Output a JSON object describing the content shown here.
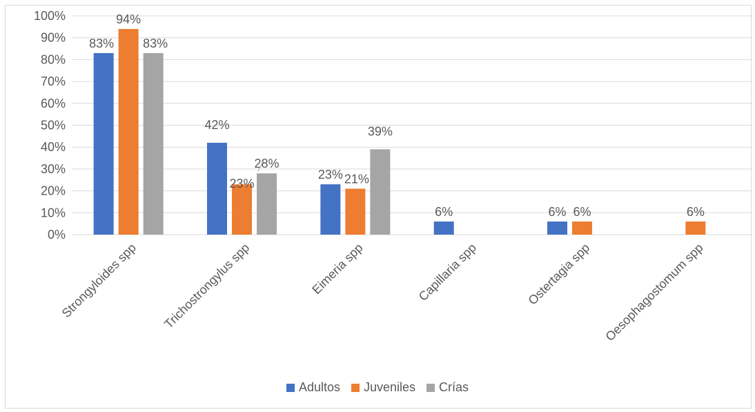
{
  "chart_data": {
    "type": "bar",
    "categories": [
      "Strongyloides spp",
      "Trichostrongylus spp",
      "Eimeria spp",
      "Capillaria spp",
      "Ostertagia spp",
      "Oesophagostomum spp"
    ],
    "series": [
      {
        "name": "Adultos",
        "color": "#4472c4",
        "values": [
          83,
          42,
          23,
          6,
          6,
          0
        ],
        "labels": [
          "83%",
          "42%",
          "23%",
          "6%",
          "6%",
          ""
        ]
      },
      {
        "name": "Juveniles",
        "color": "#ed7d31",
        "values": [
          94,
          23,
          21,
          0,
          6,
          6
        ],
        "labels": [
          "94%",
          "23%",
          "21%",
          "",
          "6%",
          "6%"
        ]
      },
      {
        "name": "Crías",
        "color": "#a5a5a5",
        "values": [
          83,
          28,
          39,
          0,
          0,
          0
        ],
        "labels": [
          "83%",
          "28%",
          "39%",
          "",
          "",
          ""
        ]
      }
    ],
    "y_ticks": [
      "0%",
      "10%",
      "20%",
      "30%",
      "40%",
      "50%",
      "60%",
      "70%",
      "80%",
      "90%",
      "100%"
    ],
    "ylim": [
      0,
      100
    ],
    "grid": true,
    "legend_position": "bottom"
  }
}
